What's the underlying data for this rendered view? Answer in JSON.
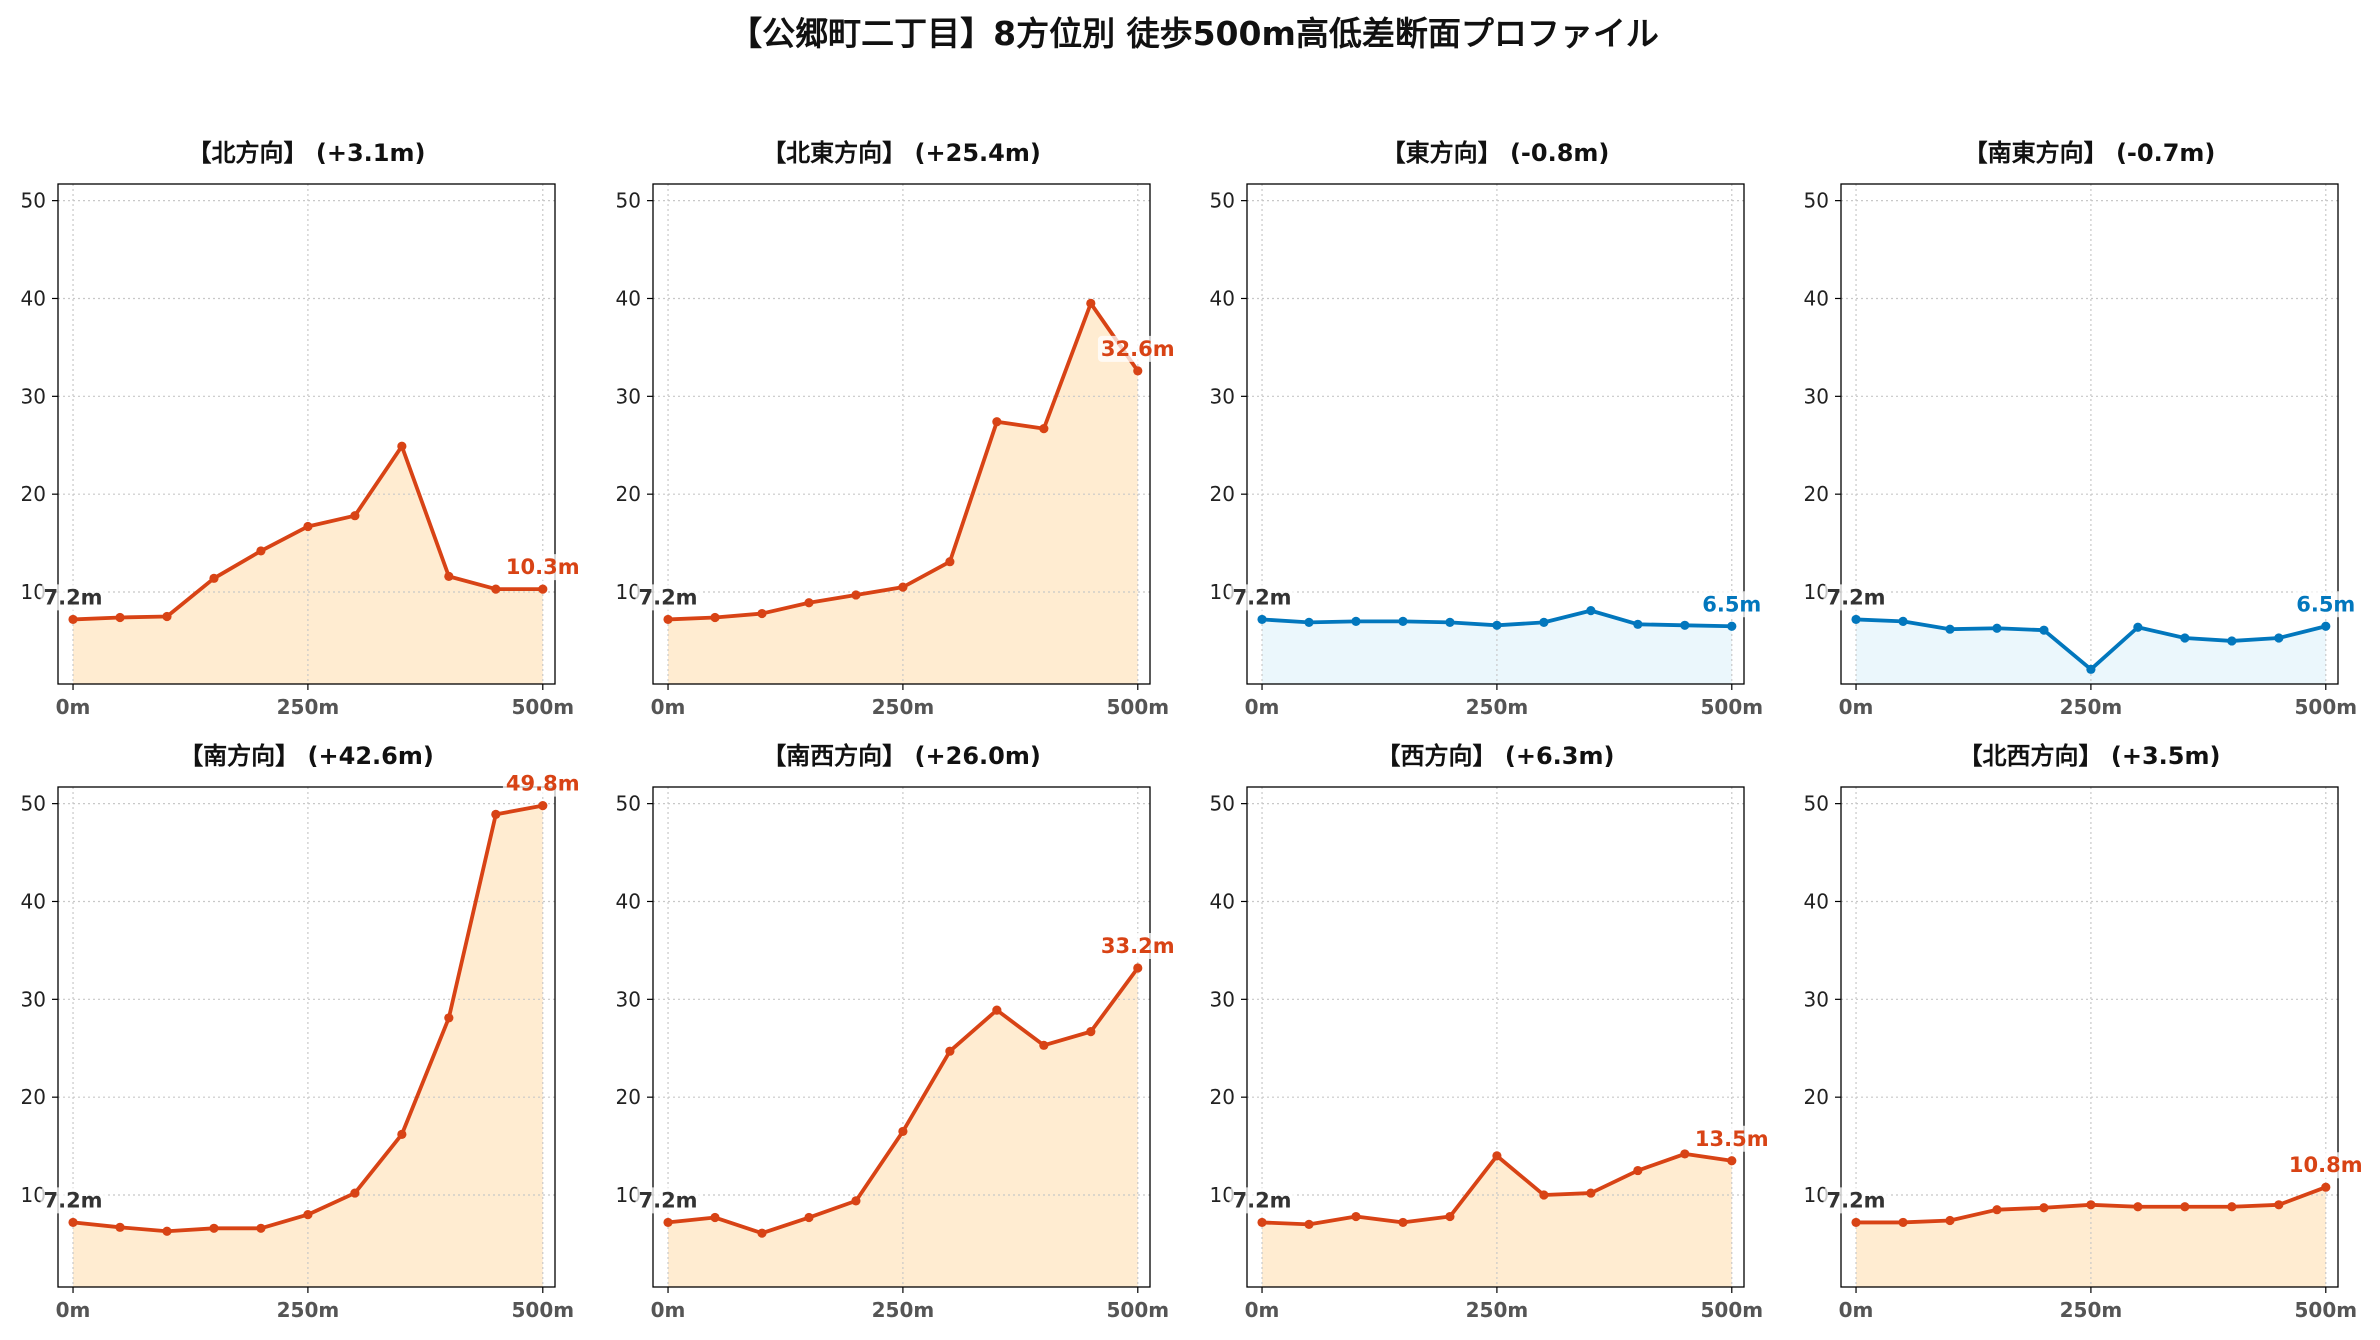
{
  "figure": {
    "title": "【公郷町二丁目】8方位別 徒歩500m高低差断面プロファイル"
  },
  "chart_data": [
    {
      "type": "area",
      "title": "【北方向】 (+3.1m)",
      "x": [
        0,
        50,
        100,
        150,
        200,
        250,
        300,
        350,
        400,
        450,
        500
      ],
      "values": [
        7.2,
        7.4,
        7.5,
        11.4,
        14.2,
        16.7,
        17.8,
        24.9,
        11.6,
        10.3,
        10.3
      ],
      "xlim": [
        -16,
        513
      ],
      "ylim": [
        0.6,
        51.7
      ],
      "xticks": [
        0,
        250,
        500
      ],
      "xtick_labels": [
        "0m",
        "250m",
        "500m"
      ],
      "yticks": [
        10,
        20,
        30,
        40,
        50
      ],
      "grid": true,
      "line_color": "#d84315",
      "fill_color": "#ffecd1",
      "annotations": [
        {
          "x": 0,
          "y": 7.2,
          "text": "7.2m",
          "color": "#333333"
        },
        {
          "x": 500,
          "y": 10.3,
          "text": "10.3m",
          "color": "#d84315"
        }
      ]
    },
    {
      "type": "area",
      "title": "【北東方向】 (+25.4m)",
      "x": [
        0,
        50,
        100,
        150,
        200,
        250,
        300,
        350,
        400,
        450,
        500
      ],
      "values": [
        7.2,
        7.4,
        7.8,
        8.9,
        9.7,
        10.5,
        13.1,
        27.4,
        26.7,
        39.5,
        32.6
      ],
      "xlim": [
        -16,
        513
      ],
      "ylim": [
        0.6,
        51.7
      ],
      "xticks": [
        0,
        250,
        500
      ],
      "xtick_labels": [
        "0m",
        "250m",
        "500m"
      ],
      "yticks": [
        10,
        20,
        30,
        40,
        50
      ],
      "grid": true,
      "line_color": "#d84315",
      "fill_color": "#ffecd1",
      "annotations": [
        {
          "x": 0,
          "y": 7.2,
          "text": "7.2m",
          "color": "#333333"
        },
        {
          "x": 500,
          "y": 32.6,
          "text": "32.6m",
          "color": "#d84315"
        }
      ]
    },
    {
      "type": "area",
      "title": "【東方向】 (-0.8m)",
      "x": [
        0,
        50,
        100,
        150,
        200,
        250,
        300,
        350,
        400,
        450,
        500
      ],
      "values": [
        7.2,
        6.9,
        7.0,
        7.0,
        6.9,
        6.6,
        6.9,
        8.1,
        6.7,
        6.6,
        6.5
      ],
      "xlim": [
        -16,
        513
      ],
      "ylim": [
        0.6,
        51.7
      ],
      "xticks": [
        0,
        250,
        500
      ],
      "xtick_labels": [
        "0m",
        "250m",
        "500m"
      ],
      "yticks": [
        10,
        20,
        30,
        40,
        50
      ],
      "grid": true,
      "line_color": "#0277bd",
      "fill_color": "#ebf7fc",
      "annotations": [
        {
          "x": 0,
          "y": 7.2,
          "text": "7.2m",
          "color": "#333333"
        },
        {
          "x": 500,
          "y": 6.5,
          "text": "6.5m",
          "color": "#0277bd"
        }
      ]
    },
    {
      "type": "area",
      "title": "【南東方向】 (-0.7m)",
      "x": [
        0,
        50,
        100,
        150,
        200,
        250,
        300,
        350,
        400,
        450,
        500
      ],
      "values": [
        7.2,
        7.0,
        6.2,
        6.3,
        6.1,
        2.1,
        6.4,
        5.3,
        5.0,
        5.3,
        6.5
      ],
      "xlim": [
        -16,
        513
      ],
      "ylim": [
        0.6,
        51.7
      ],
      "xticks": [
        0,
        250,
        500
      ],
      "xtick_labels": [
        "0m",
        "250m",
        "500m"
      ],
      "yticks": [
        10,
        20,
        30,
        40,
        50
      ],
      "grid": true,
      "line_color": "#0277bd",
      "fill_color": "#ebf7fc",
      "annotations": [
        {
          "x": 0,
          "y": 7.2,
          "text": "7.2m",
          "color": "#333333"
        },
        {
          "x": 500,
          "y": 6.5,
          "text": "6.5m",
          "color": "#0277bd"
        }
      ]
    },
    {
      "type": "area",
      "title": "【南方向】 (+42.6m)",
      "x": [
        0,
        50,
        100,
        150,
        200,
        250,
        300,
        350,
        400,
        450,
        500
      ],
      "values": [
        7.2,
        6.7,
        6.3,
        6.6,
        6.6,
        8.0,
        10.2,
        16.2,
        28.1,
        48.9,
        49.8
      ],
      "xlim": [
        -16,
        513
      ],
      "ylim": [
        0.6,
        51.7
      ],
      "xticks": [
        0,
        250,
        500
      ],
      "xtick_labels": [
        "0m",
        "250m",
        "500m"
      ],
      "yticks": [
        10,
        20,
        30,
        40,
        50
      ],
      "grid": true,
      "line_color": "#d84315",
      "fill_color": "#ffecd1",
      "annotations": [
        {
          "x": 0,
          "y": 7.2,
          "text": "7.2m",
          "color": "#333333"
        },
        {
          "x": 500,
          "y": 49.8,
          "text": "49.8m",
          "color": "#d84315"
        }
      ]
    },
    {
      "type": "area",
      "title": "【南西方向】 (+26.0m)",
      "x": [
        0,
        50,
        100,
        150,
        200,
        250,
        300,
        350,
        400,
        450,
        500
      ],
      "values": [
        7.2,
        7.7,
        6.1,
        7.7,
        9.4,
        16.5,
        24.7,
        28.9,
        25.3,
        26.7,
        33.2
      ],
      "xlim": [
        -16,
        513
      ],
      "ylim": [
        0.6,
        51.7
      ],
      "xticks": [
        0,
        250,
        500
      ],
      "xtick_labels": [
        "0m",
        "250m",
        "500m"
      ],
      "yticks": [
        10,
        20,
        30,
        40,
        50
      ],
      "grid": true,
      "line_color": "#d84315",
      "fill_color": "#ffecd1",
      "annotations": [
        {
          "x": 0,
          "y": 7.2,
          "text": "7.2m",
          "color": "#333333"
        },
        {
          "x": 500,
          "y": 33.2,
          "text": "33.2m",
          "color": "#d84315"
        }
      ]
    },
    {
      "type": "area",
      "title": "【西方向】 (+6.3m)",
      "x": [
        0,
        50,
        100,
        150,
        200,
        250,
        300,
        350,
        400,
        450,
        500
      ],
      "values": [
        7.2,
        7.0,
        7.8,
        7.2,
        7.8,
        14.0,
        10.0,
        10.2,
        12.5,
        14.2,
        13.5
      ],
      "xlim": [
        -16,
        513
      ],
      "ylim": [
        0.6,
        51.7
      ],
      "xticks": [
        0,
        250,
        500
      ],
      "xtick_labels": [
        "0m",
        "250m",
        "500m"
      ],
      "yticks": [
        10,
        20,
        30,
        40,
        50
      ],
      "grid": true,
      "line_color": "#d84315",
      "fill_color": "#ffecd1",
      "annotations": [
        {
          "x": 0,
          "y": 7.2,
          "text": "7.2m",
          "color": "#333333"
        },
        {
          "x": 500,
          "y": 13.5,
          "text": "13.5m",
          "color": "#d84315"
        }
      ]
    },
    {
      "type": "area",
      "title": "【北西方向】 (+3.5m)",
      "x": [
        0,
        50,
        100,
        150,
        200,
        250,
        300,
        350,
        400,
        450,
        500
      ],
      "values": [
        7.2,
        7.2,
        7.4,
        8.5,
        8.7,
        9.0,
        8.8,
        8.8,
        8.8,
        9.0,
        10.8
      ],
      "xlim": [
        -16,
        513
      ],
      "ylim": [
        0.6,
        51.7
      ],
      "xticks": [
        0,
        250,
        500
      ],
      "xtick_labels": [
        "0m",
        "250m",
        "500m"
      ],
      "yticks": [
        10,
        20,
        30,
        40,
        50
      ],
      "grid": true,
      "line_color": "#d84315",
      "fill_color": "#ffecd1",
      "annotations": [
        {
          "x": 0,
          "y": 7.2,
          "text": "7.2m",
          "color": "#333333"
        },
        {
          "x": 500,
          "y": 10.8,
          "text": "10.8m",
          "color": "#d84315"
        }
      ]
    }
  ]
}
